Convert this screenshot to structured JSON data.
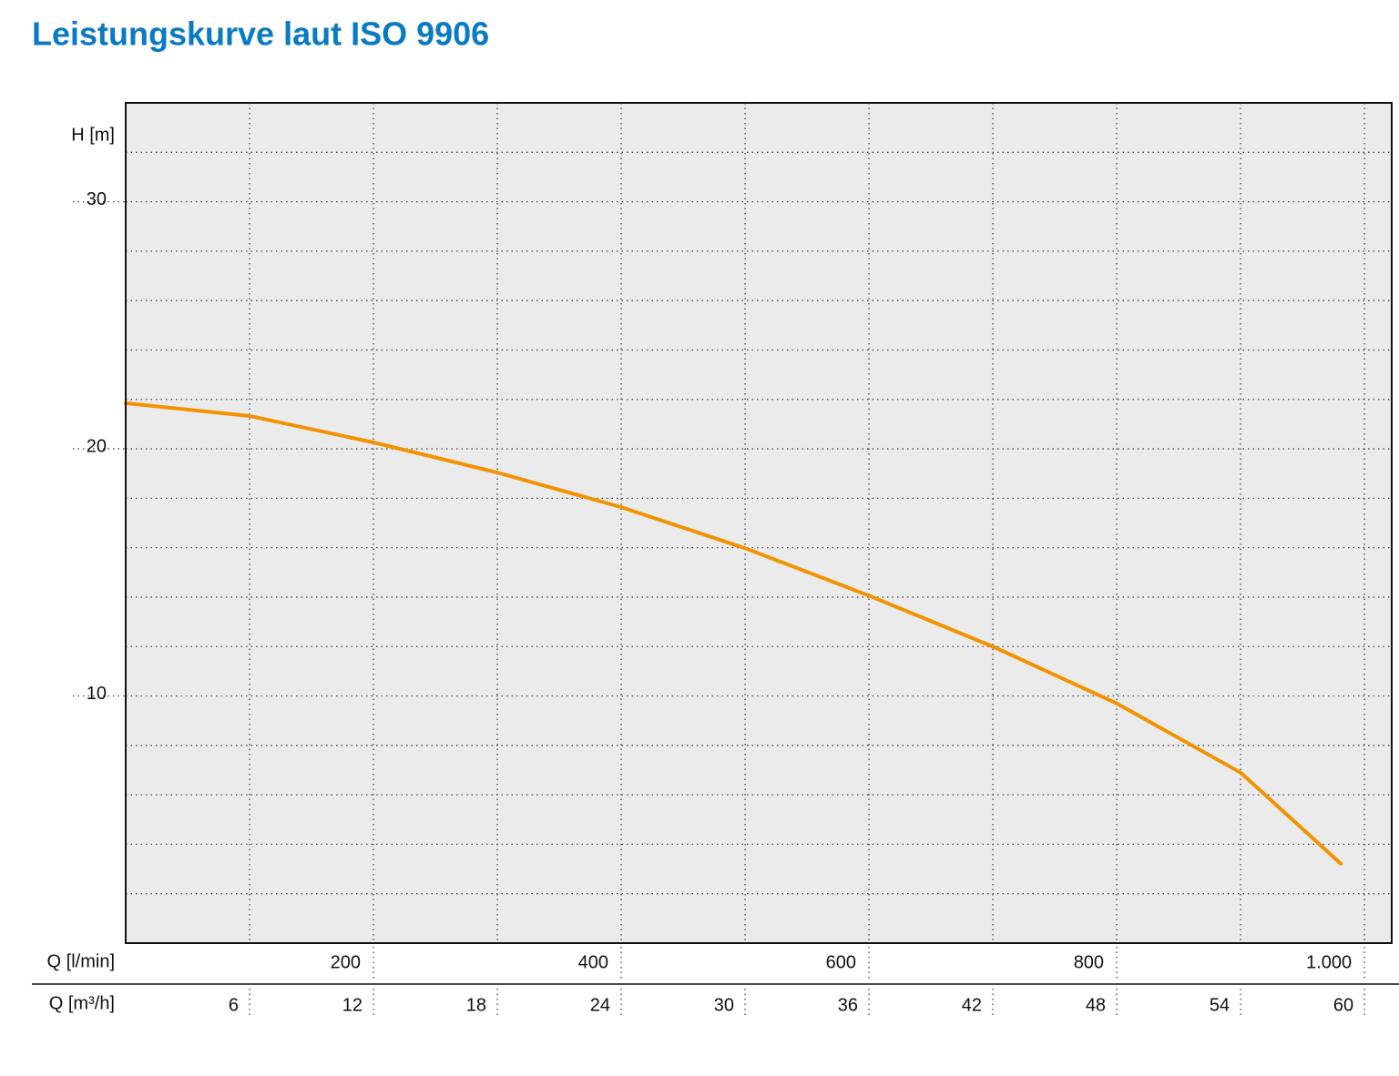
{
  "chart_data": {
    "type": "line",
    "title": "Leistungskurve laut ISO 9906",
    "y_label": "H [m]",
    "x_label": "Q [l/min]",
    "x2_label": "Q [m³/h]",
    "xlim": [
      0,
      1022
    ],
    "ylim": [
      0,
      34
    ],
    "xticks": [
      200,
      400,
      600,
      800,
      {
        "value": 1000,
        "label": "1.000"
      }
    ],
    "x2lim": [
      0,
      61.32
    ],
    "x2ticks": [
      6,
      12,
      18,
      24,
      30,
      36,
      42,
      48,
      54,
      60
    ],
    "yticks": [
      10,
      20,
      30
    ],
    "xgrid": [
      100,
      200,
      300,
      400,
      500,
      600,
      700,
      800,
      900,
      1000
    ],
    "ygrid": [
      2,
      4,
      6,
      8,
      10,
      12,
      14,
      16,
      18,
      20,
      22,
      24,
      26,
      28,
      30,
      32
    ],
    "grid": true,
    "background": "#ebebeb",
    "series": [
      {
        "color": "#f39200",
        "x": [
          0,
          100,
          200,
          300,
          400,
          500,
          600,
          700,
          800,
          900,
          981
        ],
        "values": [
          21.85,
          21.33,
          20.26,
          19.04,
          17.64,
          15.98,
          14.06,
          12.0,
          9.7,
          6.9,
          3.21
        ]
      }
    ]
  }
}
